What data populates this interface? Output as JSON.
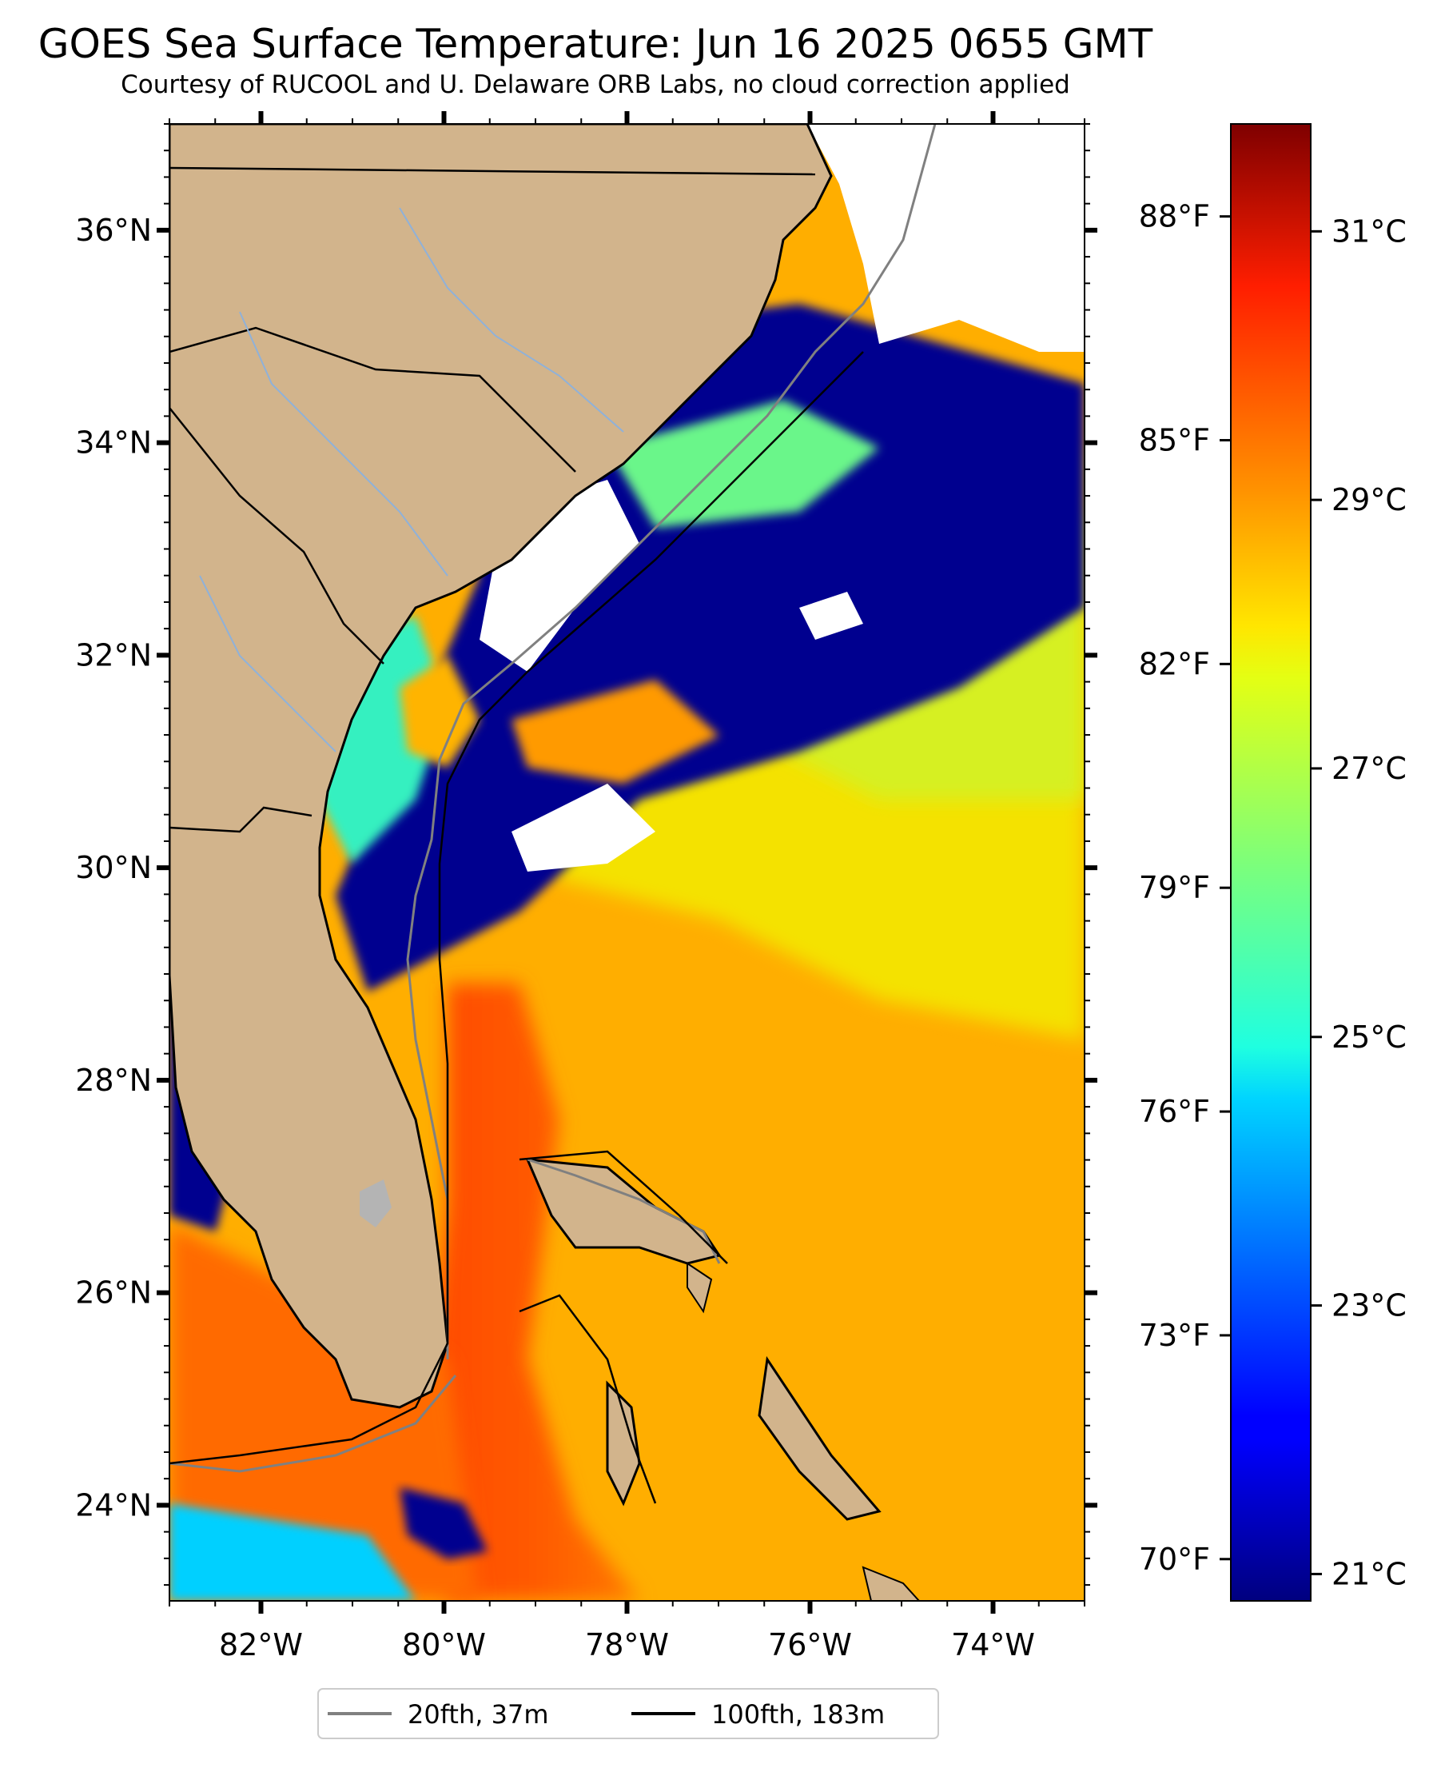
{
  "title": "GOES Sea Surface Temperature: Jun 16 2025 0655 GMT",
  "subtitle": "Courtesy of RUCOOL and U. Delaware ORB Labs, no cloud correction applied",
  "map": {
    "lon_range": [
      -83.0,
      -73.0
    ],
    "lat_range": [
      23.1,
      37.0
    ],
    "lon_ticks": [
      {
        "value": -82,
        "label": "82°W"
      },
      {
        "value": -80,
        "label": "80°W"
      },
      {
        "value": -78,
        "label": "78°W"
      },
      {
        "value": -76,
        "label": "76°W"
      },
      {
        "value": -74,
        "label": "74°W"
      }
    ],
    "lat_ticks": [
      {
        "value": 24,
        "label": "24°N"
      },
      {
        "value": 26,
        "label": "26°N"
      },
      {
        "value": 28,
        "label": "28°N"
      },
      {
        "value": 30,
        "label": "30°N"
      },
      {
        "value": 32,
        "label": "32°N"
      },
      {
        "value": 34,
        "label": "34°N"
      },
      {
        "value": 36,
        "label": "36°N"
      }
    ],
    "land_color": "#d2b48c",
    "cloud_color": "#ffffff",
    "lake_color": "#b4b4b4",
    "river_color": "#8fb1d9"
  },
  "colorbar": {
    "min_c": 20.8,
    "max_c": 31.8,
    "colormap": "jet",
    "celsius_ticks": [
      {
        "value": 21,
        "label": "21°C"
      },
      {
        "value": 23,
        "label": "23°C"
      },
      {
        "value": 25,
        "label": "25°C"
      },
      {
        "value": 27,
        "label": "27°C"
      },
      {
        "value": 29,
        "label": "29°C"
      },
      {
        "value": 31,
        "label": "31°C"
      }
    ],
    "fahrenheit_ticks": [
      {
        "value": 70,
        "label": "70°F"
      },
      {
        "value": 73,
        "label": "73°F"
      },
      {
        "value": 76,
        "label": "76°F"
      },
      {
        "value": 79,
        "label": "79°F"
      },
      {
        "value": 82,
        "label": "82°F"
      },
      {
        "value": 85,
        "label": "85°F"
      },
      {
        "value": 88,
        "label": "88°F"
      }
    ]
  },
  "legend": {
    "items": [
      {
        "label": "20fth, 37m",
        "color": "#808080"
      },
      {
        "label": "100fth, 183m",
        "color": "#000000"
      }
    ]
  }
}
